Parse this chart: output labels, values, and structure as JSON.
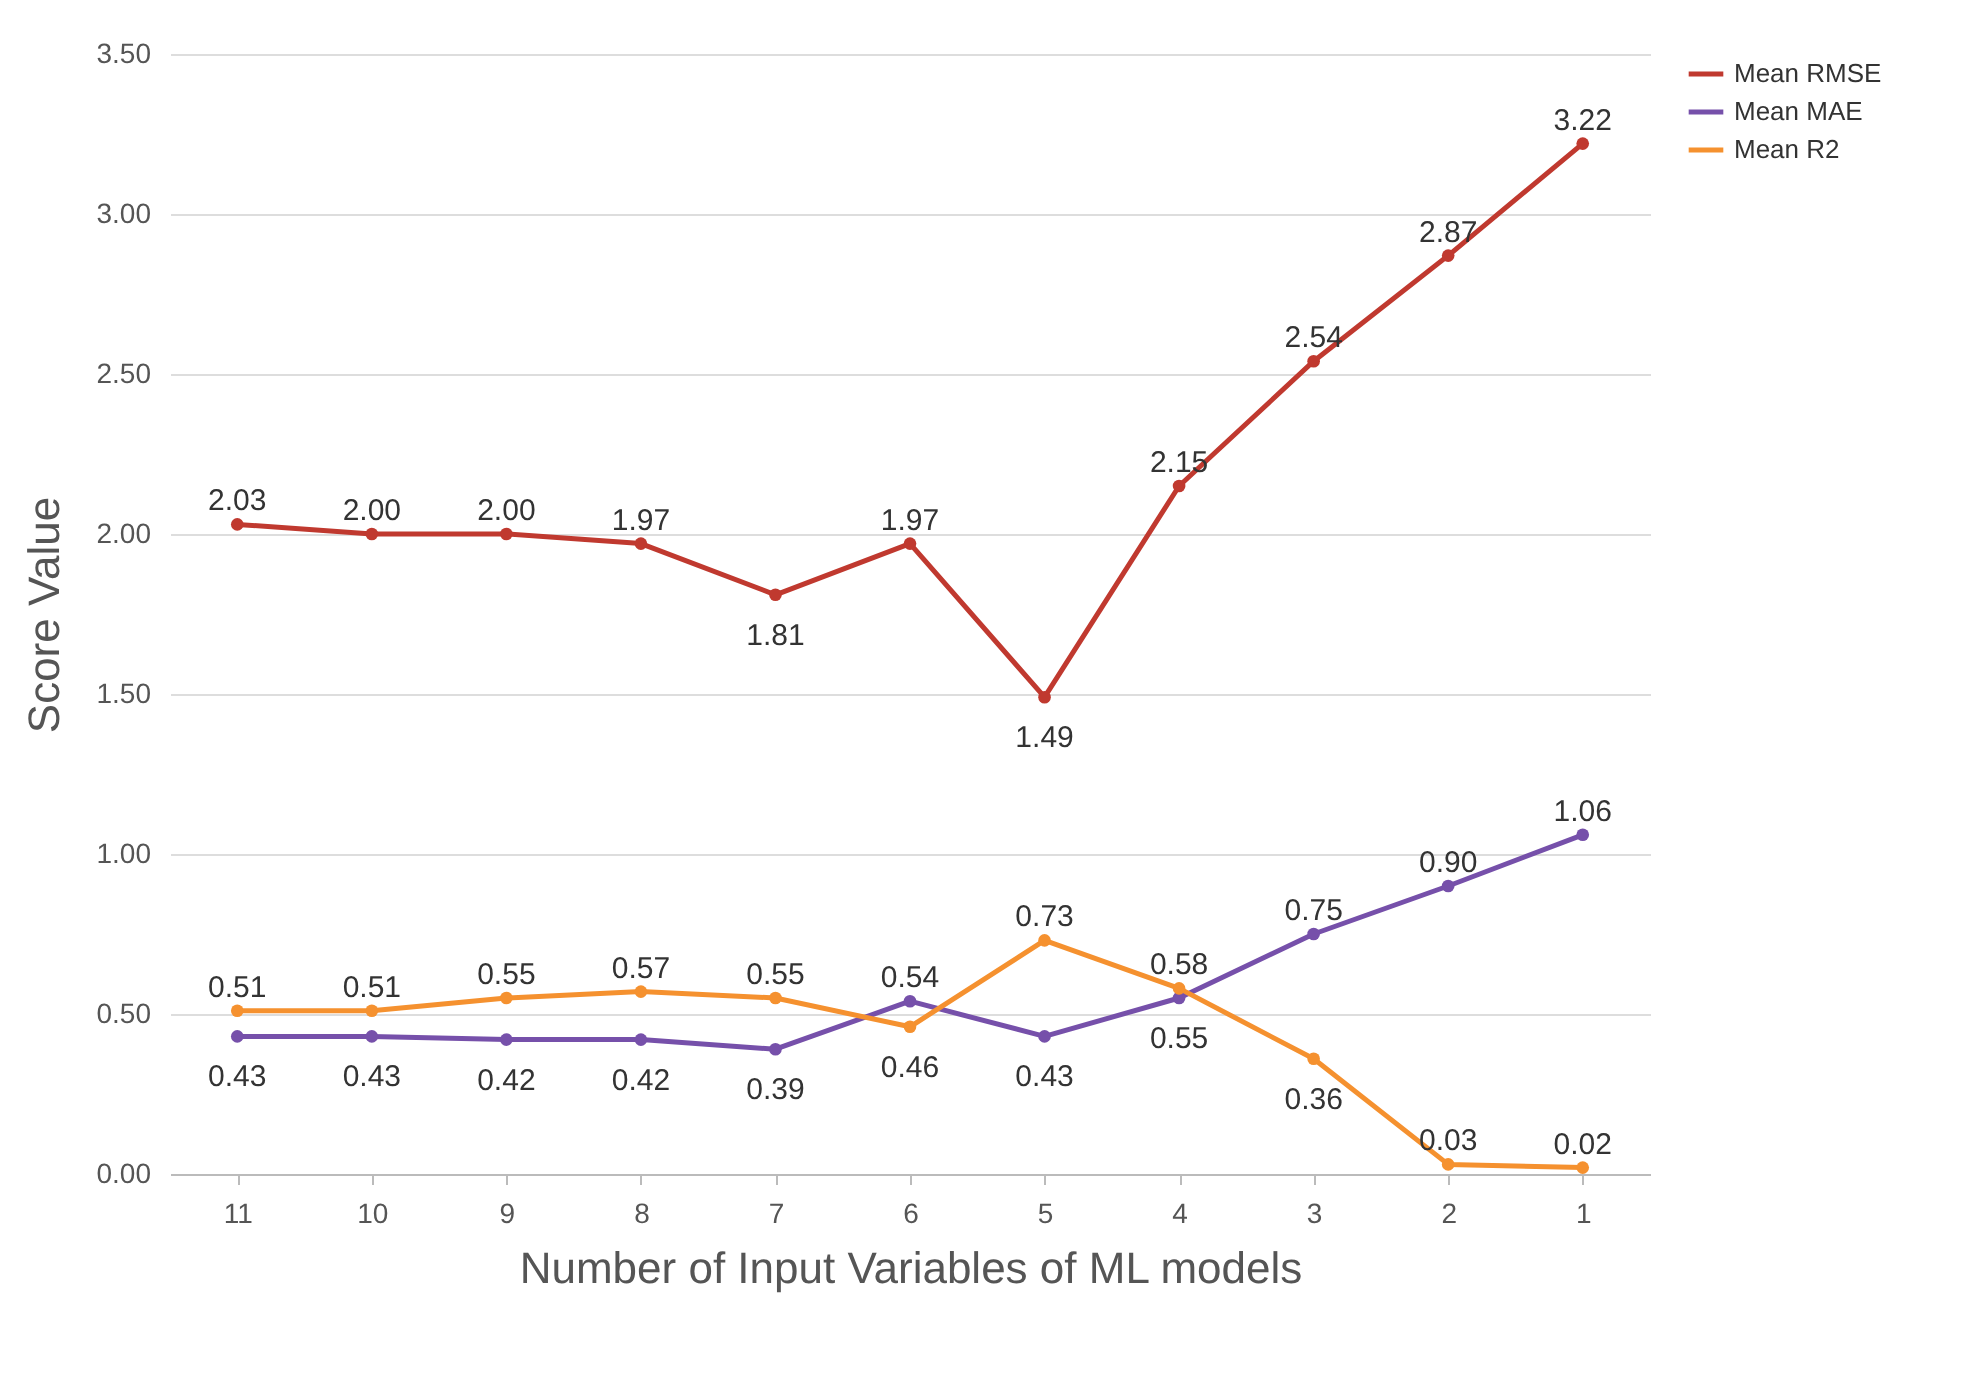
{
  "chart_data": {
    "type": "line",
    "xlabel": "Number of Input Variables of ML models",
    "ylabel": "Score Value",
    "categories": [
      "11",
      "10",
      "9",
      "8",
      "7",
      "6",
      "5",
      "4",
      "3",
      "2",
      "1"
    ],
    "series": [
      {
        "name": "Mean RMSE",
        "color": "#c0392f",
        "values": [
          2.03,
          2.0,
          2.0,
          1.97,
          1.81,
          1.97,
          1.49,
          2.15,
          2.54,
          2.87,
          3.22
        ],
        "value_labels": [
          "2.03",
          "2.00",
          "2.00",
          "1.97",
          "1.81",
          "1.97",
          "1.49",
          "2.15",
          "2.54",
          "2.87",
          "3.22"
        ]
      },
      {
        "name": "Mean MAE",
        "color": "#7650aa",
        "values": [
          0.43,
          0.43,
          0.42,
          0.42,
          0.39,
          0.54,
          0.43,
          0.55,
          0.75,
          0.9,
          1.06
        ],
        "value_labels": [
          "0.43",
          "0.43",
          "0.42",
          "0.42",
          "0.39",
          "0.54",
          "0.43",
          "0.55",
          "0.75",
          "0.90",
          "1.06"
        ]
      },
      {
        "name": "Mean R2",
        "color": "#f5912f",
        "values": [
          0.51,
          0.51,
          0.55,
          0.57,
          0.55,
          0.46,
          0.73,
          0.58,
          0.36,
          0.03,
          0.02
        ],
        "value_labels": [
          "0.51",
          "0.51",
          "0.55",
          "0.57",
          "0.55",
          "0.46",
          "0.73",
          "0.58",
          "0.36",
          "0.03",
          "0.02"
        ]
      }
    ],
    "ylim": [
      0,
      3.5
    ],
    "yticks": [
      {
        "value": 0,
        "label": "0.00"
      },
      {
        "value": 0.5,
        "label": "0.50"
      },
      {
        "value": 1,
        "label": "1.00"
      },
      {
        "value": 1.5,
        "label": "1.50"
      },
      {
        "value": 2,
        "label": "2.00"
      },
      {
        "value": 2.5,
        "label": "2.50"
      },
      {
        "value": 3,
        "label": "3.00"
      },
      {
        "value": 3.5,
        "label": "3.50"
      }
    ],
    "grid": "y",
    "legend": "right",
    "marker": "circle",
    "line_style": "solid"
  }
}
